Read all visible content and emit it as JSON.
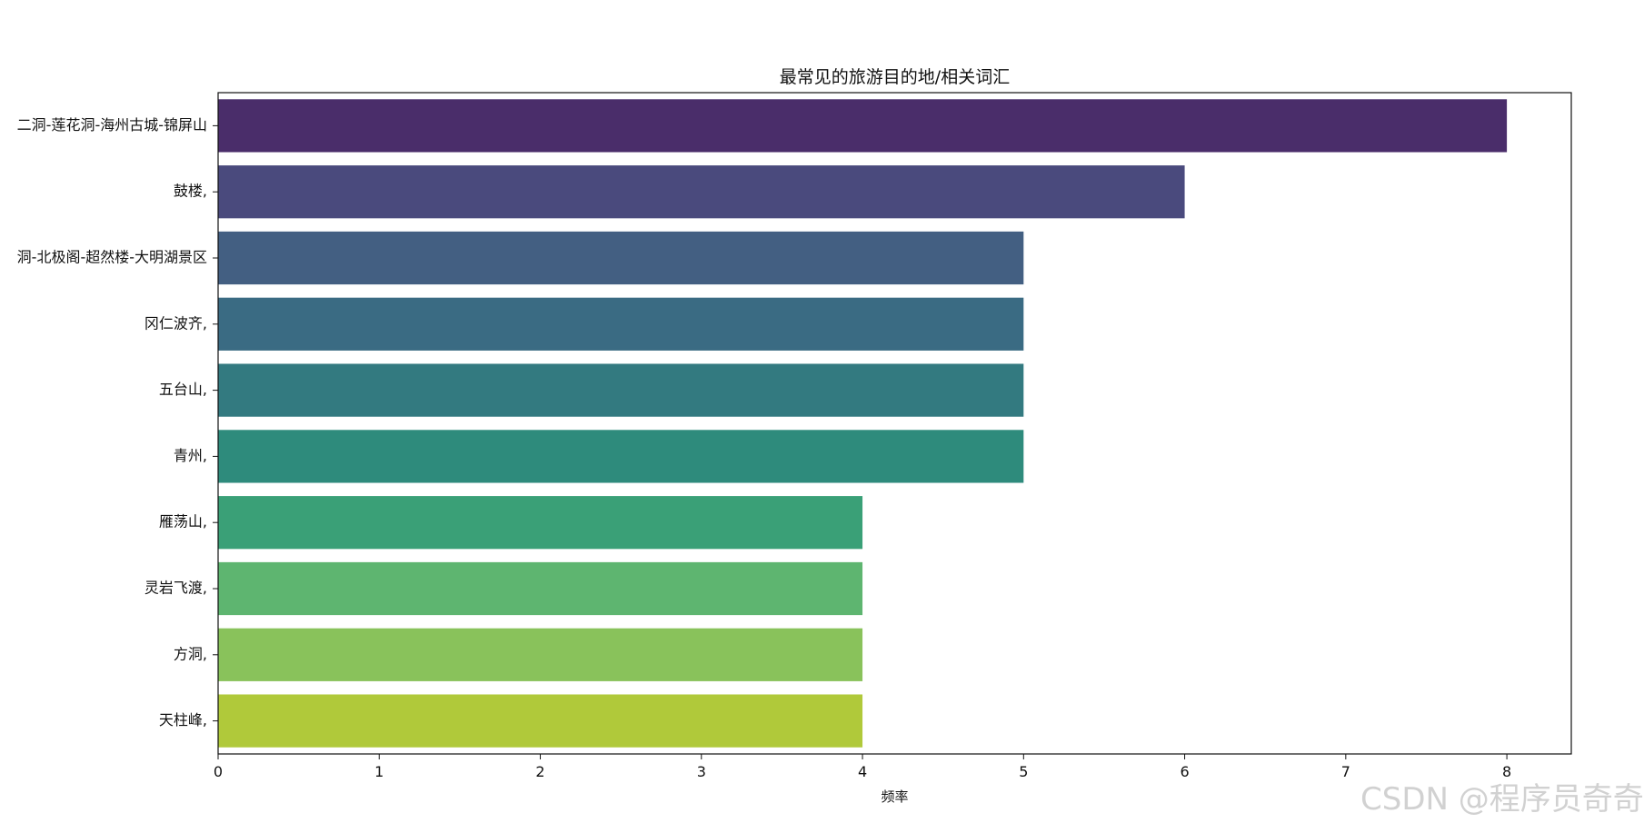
{
  "chart_data": {
    "type": "bar",
    "orientation": "horizontal",
    "title": "最常见的旅游目的地/相关词汇",
    "xlabel": "频率",
    "ylabel": "",
    "categories": [
      "二洞-莲花洞-海州古城-锦屏山",
      "鼓楼,",
      "洞-北极阁-超然楼-大明湖景区",
      "冈仁波齐,",
      "五台山,",
      "青州,",
      "雁荡山,",
      "灵岩飞渡,",
      "方洞,",
      "天柱峰,"
    ],
    "values": [
      8,
      6,
      5,
      5,
      5,
      5,
      4,
      4,
      4,
      4
    ],
    "xlim": [
      0,
      8.4
    ],
    "xticks": [
      0,
      1,
      2,
      3,
      4,
      5,
      6,
      7,
      8
    ],
    "colors": [
      "#4a2d6a",
      "#4a4a7d",
      "#435f82",
      "#3a6b83",
      "#337a80",
      "#2e8b7c",
      "#3aa077",
      "#5eb570",
      "#89c25b",
      "#b0c93a"
    ],
    "grid": false,
    "legend": "none"
  },
  "watermark": "CSDN @程序员奇奇"
}
